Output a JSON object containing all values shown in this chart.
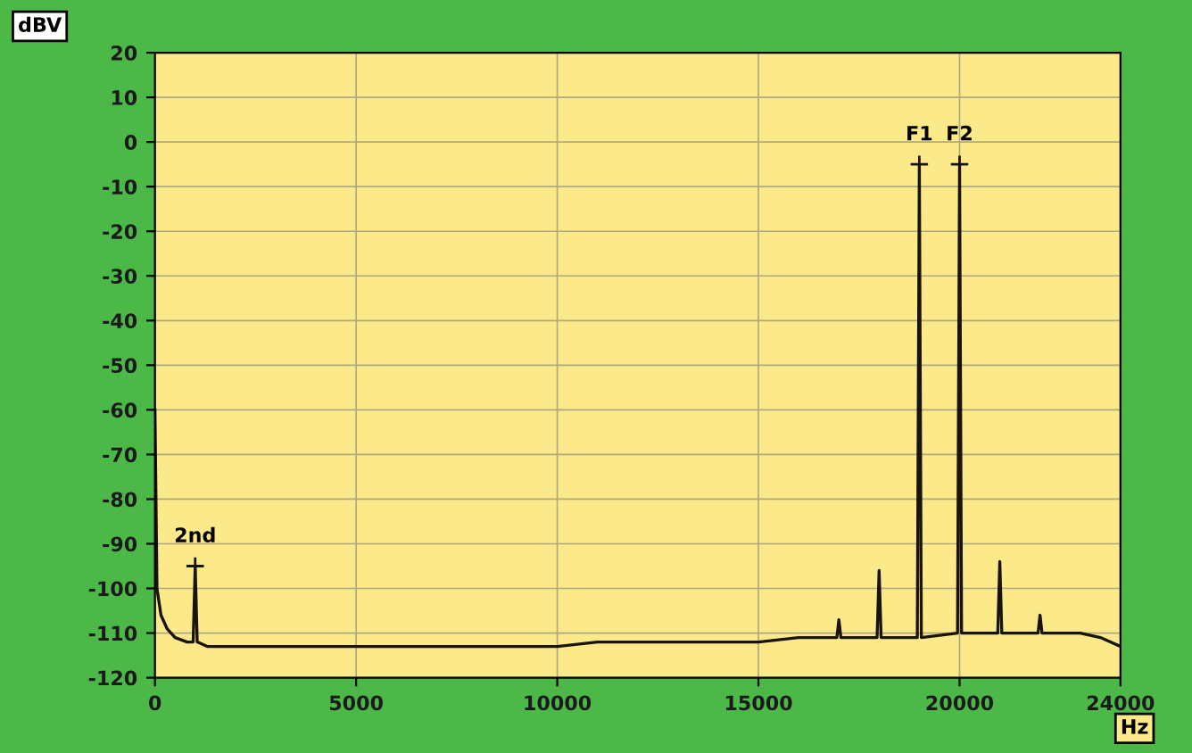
{
  "chart_data": {
    "type": "line",
    "xlabel": "Hz",
    "ylabel": "dBV",
    "x": [
      0,
      50,
      150,
      300,
      500,
      800,
      950,
      1000,
      1050,
      1300,
      2000,
      3000,
      4000,
      5000,
      6000,
      7000,
      8000,
      9000,
      10000,
      11000,
      12000,
      13000,
      14000,
      15000,
      16000,
      16950,
      17000,
      17050,
      17950,
      18000,
      18050,
      18950,
      19000,
      19050,
      19950,
      20000,
      20050,
      20950,
      21000,
      21050,
      21950,
      22000,
      22050,
      23000,
      23500,
      24000
    ],
    "series": [
      {
        "color": "#1a1408",
        "values": [
          -60,
          -100,
          -106,
          -109,
          -111,
          -112,
          -112,
          -95,
          -112,
          -113,
          -113,
          -113,
          -113,
          -113,
          -113,
          -113,
          -113,
          -113,
          -113,
          -112,
          -112,
          -112,
          -112,
          -112,
          -111,
          -111,
          -107,
          -111,
          -111,
          -96,
          -111,
          -111,
          -5,
          -111,
          -110,
          -5,
          -110,
          -110,
          -94,
          -110,
          -110,
          -106,
          -110,
          -110,
          -111,
          -113
        ]
      }
    ],
    "xlim": [
      0,
      24000
    ],
    "ylim": [
      -120,
      20
    ],
    "xticks": [
      0,
      5000,
      10000,
      15000,
      20000,
      24000
    ],
    "yticks": [
      -120,
      -110,
      -100,
      -90,
      -80,
      -70,
      -60,
      -50,
      -40,
      -30,
      -20,
      -10,
      0,
      10,
      20
    ],
    "grid": true,
    "legend": false,
    "annotations": [
      {
        "text": "2nd",
        "x": 1000,
        "y": -95
      },
      {
        "text": "F1",
        "x": 19000,
        "y": -5
      },
      {
        "text": "F2",
        "x": 20000,
        "y": -5
      }
    ]
  }
}
